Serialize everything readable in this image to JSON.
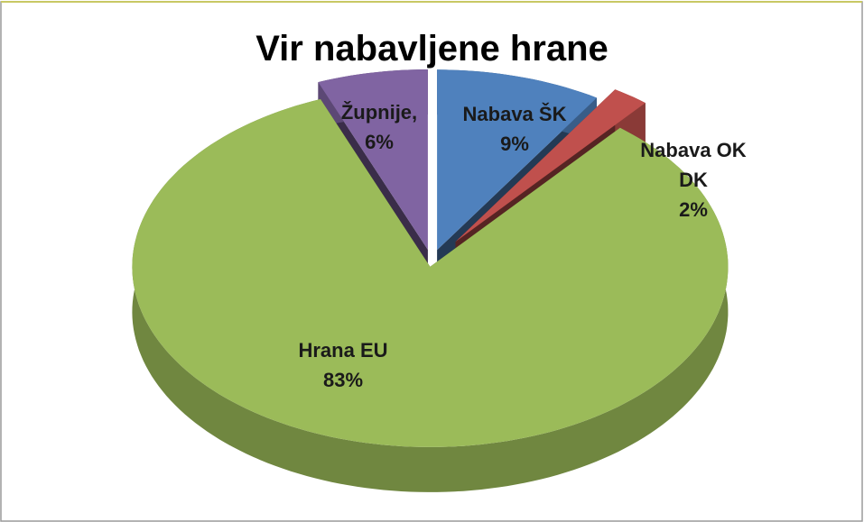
{
  "chart_data": {
    "type": "pie3d",
    "title": "Vir nabavljene hrane",
    "categories": [
      "Nabava ŠK",
      "Nabava OK DK",
      "Hrana EU",
      "Župnije,"
    ],
    "values": [
      9,
      2,
      83,
      6
    ],
    "value_labels": [
      "9%",
      "2%",
      "83%",
      "6%"
    ],
    "colors": [
      "#4f81bd",
      "#c0504d",
      "#9bbb59",
      "#8064a2"
    ]
  }
}
